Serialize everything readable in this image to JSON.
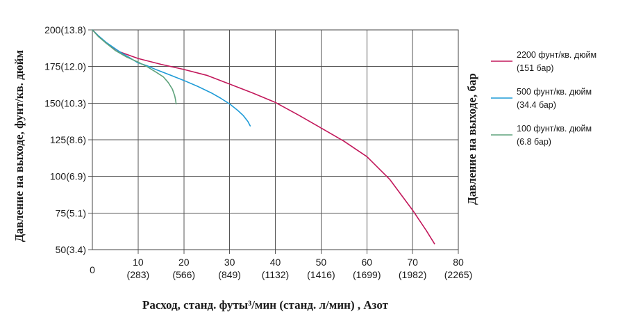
{
  "chart_data": {
    "type": "line",
    "xlabel": "Расход, станд. футы³/мин (станд. л/мин) , Азот",
    "ylabel_left": "Давление на выходе, фунт/кв. дюйм",
    "ylabel_right": "Давление на выходе, бар",
    "x_zero_label": "0",
    "xlim": [
      0,
      80
    ],
    "ylim": [
      50,
      200
    ],
    "grid": true,
    "legend_position": "right",
    "x_ticks": [
      {
        "value": 10,
        "line1": "10",
        "line2": "(283)"
      },
      {
        "value": 20,
        "line1": "20",
        "line2": "(566)"
      },
      {
        "value": 30,
        "line1": "30",
        "line2": "(849)"
      },
      {
        "value": 40,
        "line1": "40",
        "line2": "(1132)"
      },
      {
        "value": 50,
        "line1": "50",
        "line2": "(1416)"
      },
      {
        "value": 60,
        "line1": "60",
        "line2": "(1699)"
      },
      {
        "value": 70,
        "line1": "70",
        "line2": "(1982)"
      },
      {
        "value": 80,
        "line1": "80",
        "line2": "(2265)"
      }
    ],
    "y_ticks": [
      {
        "value": 200,
        "label": "200(13.8)"
      },
      {
        "value": 175,
        "label": "175(12.0)"
      },
      {
        "value": 150,
        "label": "150(10.3)"
      },
      {
        "value": 125,
        "label": "125(8.6)"
      },
      {
        "value": 100,
        "label": "100(6.9)"
      },
      {
        "value": 75,
        "label": "75(5.1)"
      },
      {
        "value": 50,
        "label": "50(3.4)"
      }
    ],
    "series": [
      {
        "name": "2200 фунт/кв. дюйм",
        "name_line2": "(151 бар)",
        "color": "#c2185b",
        "points": [
          [
            0,
            200
          ],
          [
            1.3,
            196
          ],
          [
            3,
            191
          ],
          [
            6,
            185
          ],
          [
            10,
            180.5
          ],
          [
            15,
            176.5
          ],
          [
            20,
            173
          ],
          [
            25,
            169
          ],
          [
            30,
            163
          ],
          [
            35,
            157
          ],
          [
            40,
            150.5
          ],
          [
            45,
            142
          ],
          [
            50,
            133
          ],
          [
            55,
            124
          ],
          [
            60,
            113.5
          ],
          [
            65,
            98
          ],
          [
            70,
            77
          ],
          [
            73,
            63
          ],
          [
            74.8,
            54
          ]
        ]
      },
      {
        "name": "500 фунт/кв. дюйм",
        "name_line2": "(34.4 бар)",
        "color": "#1e9bd7",
        "points": [
          [
            0,
            200
          ],
          [
            1.3,
            196
          ],
          [
            3,
            191.5
          ],
          [
            6,
            185
          ],
          [
            8,
            181.3
          ],
          [
            10,
            177.5
          ],
          [
            12,
            175.5
          ],
          [
            14,
            172.8
          ],
          [
            17,
            169.2
          ],
          [
            20,
            165.5
          ],
          [
            23,
            161.5
          ],
          [
            26,
            157
          ],
          [
            28,
            153.5
          ],
          [
            30,
            149.5
          ],
          [
            31.8,
            145
          ],
          [
            33,
            141.5
          ],
          [
            34,
            137.5
          ],
          [
            34.5,
            134.5
          ]
        ]
      },
      {
        "name": "100 фунт/кв. дюйм",
        "name_line2": "(6.8 бар)",
        "color": "#5fa37c",
        "points": [
          [
            0,
            200
          ],
          [
            1.3,
            195.5
          ],
          [
            3,
            191
          ],
          [
            5,
            186
          ],
          [
            7.5,
            181.5
          ],
          [
            10,
            178
          ],
          [
            12,
            174.8
          ],
          [
            14,
            171
          ],
          [
            15.5,
            168
          ],
          [
            16.6,
            164
          ],
          [
            17.5,
            159.5
          ],
          [
            18,
            155
          ],
          [
            18.2,
            152
          ],
          [
            18.3,
            149.5
          ]
        ]
      }
    ]
  }
}
